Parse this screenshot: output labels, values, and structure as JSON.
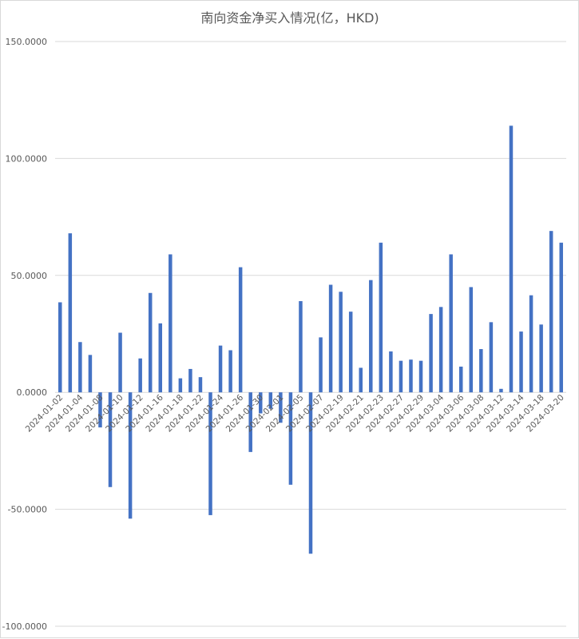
{
  "chart_data": {
    "type": "bar",
    "title": "南向资金净买入情况(亿，HKD)",
    "xlabel": "",
    "ylabel": "",
    "ylim": [
      -100,
      150
    ],
    "yticks": [
      150,
      100,
      50,
      0,
      -50,
      -100
    ],
    "ytick_labels": [
      "150.0000",
      "100.0000",
      "50.0000",
      "0.0000",
      "-50.0000",
      "-100.0000"
    ],
    "grid": true,
    "legend": "none",
    "color": "#4472c4",
    "categories": [
      "2024-01-02",
      "2024-01-03",
      "2024-01-04",
      "2024-01-05",
      "2024-01-08",
      "2024-01-09",
      "2024-01-10",
      "2024-01-11",
      "2024-01-12",
      "2024-01-15",
      "2024-01-16",
      "2024-01-17",
      "2024-01-18",
      "2024-01-19",
      "2024-01-22",
      "2024-01-23",
      "2024-01-24",
      "2024-01-25",
      "2024-01-26",
      "2024-01-29",
      "2024-01-30",
      "2024-01-31",
      "2024-02-01",
      "2024-02-02",
      "2024-02-05",
      "2024-02-06",
      "2024-02-07",
      "2024-02-08",
      "2024-02-19",
      "2024-02-20",
      "2024-02-21",
      "2024-02-22",
      "2024-02-23",
      "2024-02-26",
      "2024-02-27",
      "2024-02-28",
      "2024-02-29",
      "2024-03-01",
      "2024-03-04",
      "2024-03-05",
      "2024-03-06",
      "2024-03-07",
      "2024-03-08",
      "2024-03-11",
      "2024-03-12",
      "2024-03-13",
      "2024-03-14",
      "2024-03-15",
      "2024-03-18",
      "2024-03-19",
      "2024-03-20"
    ],
    "tick_labels_shown": [
      "2024-01-02",
      "2024-01-04",
      "2024-01-08",
      "2024-01-10",
      "2024-01-12",
      "2024-01-16",
      "2024-01-18",
      "2024-01-22",
      "2024-01-24",
      "2024-01-26",
      "2024-01-30",
      "2024-02-01",
      "2024-02-05",
      "2024-02-07",
      "2024-02-19",
      "2024-02-21",
      "2024-02-23",
      "2024-02-27",
      "2024-02-29",
      "2024-03-04",
      "2024-03-06",
      "2024-03-08",
      "2024-03-12",
      "2024-03-14",
      "2024-03-18",
      "2024-03-20"
    ],
    "values": [
      38.5,
      68.0,
      21.5,
      16.0,
      -15.0,
      -40.5,
      25.5,
      -54.0,
      14.5,
      42.5,
      29.5,
      59.0,
      6.0,
      10.0,
      6.5,
      -52.5,
      20.0,
      18.0,
      53.5,
      -25.5,
      -9.0,
      -7.0,
      -13.0,
      -39.5,
      39.0,
      -69.0,
      23.5,
      46.0,
      43.0,
      34.5,
      10.5,
      48.0,
      64.0,
      17.5,
      13.5,
      14.0,
      13.5,
      33.5,
      36.5,
      59.0,
      11.0,
      45.0,
      18.5,
      30.0,
      1.5,
      114.0,
      26.0,
      41.5,
      29.0,
      69.0,
      64.0
    ]
  }
}
